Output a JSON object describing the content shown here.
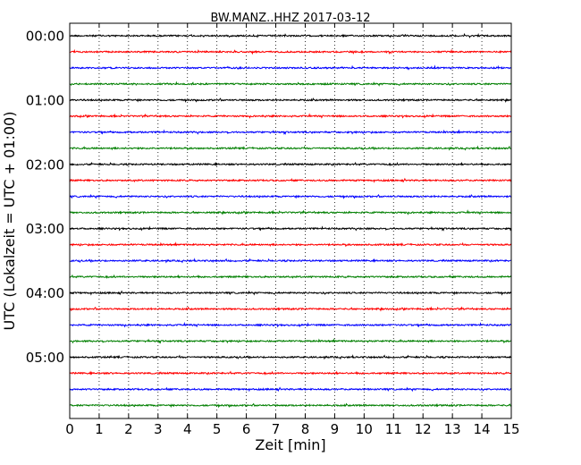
{
  "chart_data": {
    "type": "line",
    "title": "BW.MANZ..HHZ 2017-03-12",
    "xlabel": "Zeit  [min]",
    "ylabel": "UTC (Lokalzeit = UTC + 01:00)",
    "xlim": [
      0,
      15
    ],
    "x_ticks": [
      "0",
      "1",
      "2",
      "3",
      "4",
      "5",
      "6",
      "7",
      "8",
      "9",
      "10",
      "11",
      "12",
      "13",
      "14",
      "15"
    ],
    "y_tick_labels": [
      "00:00",
      "01:00",
      "02:00",
      "03:00",
      "04:00",
      "05:00"
    ],
    "grid_x": true,
    "trace_count": 24,
    "traces_per_hour": 4,
    "trace_colors": [
      "#000000",
      "#ff0000",
      "#0000ff",
      "#007f00"
    ]
  }
}
